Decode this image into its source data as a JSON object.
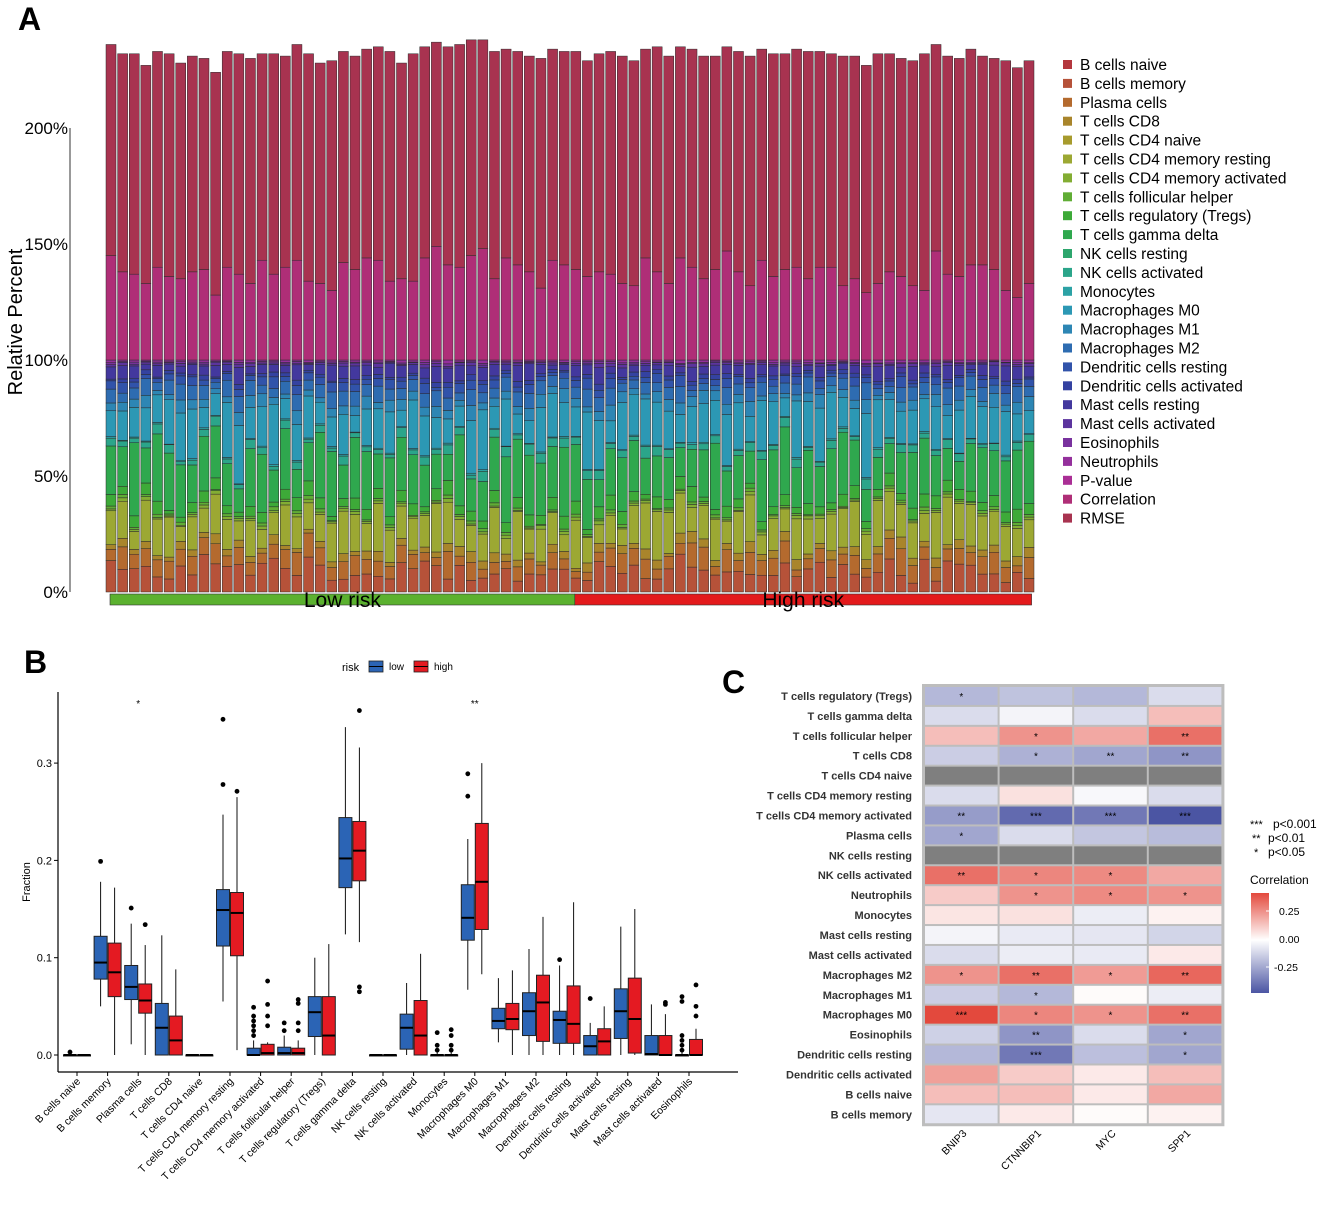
{
  "panels": {
    "a": "A",
    "b": "B",
    "c": "C"
  },
  "chart_data": [
    {
      "type": "bar",
      "stacked": true,
      "panel": "A",
      "ylabel": "Relative Percent",
      "yticks": [
        "0%",
        "50%",
        "100%",
        "150%",
        "200%"
      ],
      "ylim": [
        0,
        240
      ],
      "groups": [
        {
          "label": "Low risk",
          "count": 40,
          "color": "#5BB12F"
        },
        {
          "label": "High risk",
          "count": 40,
          "color": "#E31A1C"
        }
      ],
      "series": [
        "B cells naive",
        "B cells memory",
        "Plasma cells",
        "T cells CD8",
        "T cells CD4 naive",
        "T cells CD4 memory resting",
        "T cells CD4 memory activated",
        "T cells follicular helper",
        "T cells regulatory (Tregs)",
        "T cells gamma delta",
        "NK cells resting",
        "NK cells activated",
        "Monocytes",
        "Macrophages M0",
        "Macrophages M1",
        "Macrophages M2",
        "Dendritic cells resting",
        "Dendritic cells activated",
        "Mast cells resting",
        "Mast cells activated",
        "Eosinophils",
        "Neutrophils",
        "P-value",
        "Correlation",
        "RMSE"
      ],
      "colors": [
        "#B4373E",
        "#B65239",
        "#B46A2E",
        "#A9852B",
        "#A79B2D",
        "#9CA833",
        "#83AD33",
        "#60AD35",
        "#3DAA38",
        "#2FA84E",
        "#2DA66D",
        "#2BA58A",
        "#2CA2A5",
        "#2C98B4",
        "#2D86B4",
        "#2E6CB1",
        "#3153AA",
        "#3442A1",
        "#43389E",
        "#5C349E",
        "#79329E",
        "#94309C",
        "#AA2E95",
        "#AF2E77",
        "#A83350"
      ],
      "mean_composition": [
        0.0,
        0.095,
        0.065,
        0.03,
        0.0,
        0.145,
        0.01,
        0.01,
        0.04,
        0.205,
        0.0,
        0.03,
        0.005,
        0.16,
        0.04,
        0.05,
        0.03,
        0.015,
        0.045,
        0.01,
        0.006,
        0.009,
        0.0,
        0.45,
        0.85
      ],
      "correlation": [
        0.45,
        0.38,
        0.37,
        0.33,
        0.4,
        0.36,
        0.35,
        0.38,
        0.39,
        0.28,
        0.4,
        0.37,
        0.33,
        0.43,
        0.37,
        0.4,
        0.43,
        0.34,
        0.33,
        0.3,
        0.42,
        0.39,
        0.44,
        0.43,
        0.34,
        0.35,
        0.34,
        0.44,
        0.49,
        0.41,
        0.4,
        0.45,
        0.48,
        0.35,
        0.44,
        0.41,
        0.38,
        0.31,
        0.43,
        0.41,
        0.39,
        0.36,
        0.38,
        0.37,
        0.33,
        0.32,
        0.44,
        0.38,
        0.33,
        0.44,
        0.4,
        0.35,
        0.39,
        0.47,
        0.38,
        0.32,
        0.43,
        0.36,
        0.39,
        0.4,
        0.35,
        0.4,
        0.4,
        0.32,
        0.35,
        0.29,
        0.33,
        0.38,
        0.36,
        0.32,
        0.3,
        0.47,
        0.37,
        0.36,
        0.41,
        0.41,
        0.39,
        0.3,
        0.27,
        0.33
      ],
      "rmse": [
        0.91,
        0.94,
        0.95,
        0.94,
        0.93,
        0.96,
        0.93,
        0.93,
        0.91,
        0.96,
        0.93,
        0.95,
        0.97,
        0.89,
        0.95,
        0.91,
        0.93,
        0.98,
        0.95,
        0.99,
        0.91,
        0.92,
        0.9,
        0.92,
        0.99,
        0.93,
        0.98,
        0.91,
        0.88,
        0.94,
        0.96,
        0.93,
        0.9,
        0.98,
        0.9,
        0.92,
        0.93,
        0.99,
        0.91,
        0.92,
        0.94,
        0.93,
        0.94,
        0.96,
        0.98,
        0.97,
        0.9,
        0.97,
        0.98,
        0.91,
        0.94,
        0.96,
        0.92,
        0.88,
        0.95,
        0.99,
        0.91,
        0.96,
        0.93,
        0.94,
        0.98,
        0.93,
        0.92,
        0.99,
        0.96,
        0.98,
        0.99,
        0.94,
        0.94,
        0.97,
        1.02,
        0.89,
        0.94,
        0.94,
        0.93,
        0.9,
        0.91,
        0.99,
        0.99,
        0.96
      ]
    },
    {
      "type": "box",
      "panel": "B",
      "ylabel": "Fraction",
      "yticks": [
        "0.0",
        "0.1",
        "0.2",
        "0.3"
      ],
      "ylim": [
        -0.015,
        0.37
      ],
      "legend": {
        "title": "risk",
        "items": [
          {
            "label": "low",
            "color": "#2B64B5"
          },
          {
            "label": "high",
            "color": "#E41A22"
          }
        ],
        "position": "top"
      },
      "categories": [
        "B cells naive",
        "B cells memory",
        "Plasma cells",
        "T cells CD8",
        "T cells CD4 naive",
        "T cells CD4 memory resting",
        "T cells CD4 memory activated",
        "T cells follicular helper",
        "T cells regulatory (Tregs)",
        "T cells gamma delta",
        "NK cells resting",
        "NK cells activated",
        "Monocytes",
        "Macrophages M0",
        "Macrophages M1",
        "Macrophages M2",
        "Dendritic cells resting",
        "Dendritic cells activated",
        "Mast cells resting",
        "Mast cells activated",
        "Eosinophils"
      ],
      "significance": [
        "",
        "",
        "*",
        "",
        "",
        "",
        "",
        "",
        "",
        "",
        "",
        "",
        "",
        "**",
        "",
        "",
        "",
        "",
        "",
        "",
        ""
      ],
      "low": [
        [
          0,
          0,
          0,
          0,
          0,
          [
            0.003
          ]
        ],
        [
          0.05,
          0.078,
          0.095,
          0.122,
          0.178,
          [
            0.199
          ]
        ],
        [
          0.011,
          0.057,
          0.07,
          0.092,
          0.135,
          [
            0.151
          ]
        ],
        [
          0,
          0,
          0.028,
          0.053,
          0.123,
          []
        ],
        [
          0,
          0,
          0,
          0,
          0,
          []
        ],
        [
          0.055,
          0.112,
          0.149,
          0.17,
          0.247,
          [
            0.278,
            0.345
          ]
        ],
        [
          0,
          0,
          0,
          0.007,
          0.015,
          [
            0.02,
            0.025,
            0.03,
            0.035,
            0.04,
            0.049
          ]
        ],
        [
          0,
          0,
          0.002,
          0.008,
          0.02,
          [
            0.025,
            0.033
          ]
        ],
        [
          0,
          0.019,
          0.044,
          0.06,
          0.1,
          []
        ],
        [
          0.124,
          0.172,
          0.202,
          0.244,
          0.337,
          []
        ],
        [
          0,
          0,
          0,
          0,
          0,
          []
        ],
        [
          0,
          0.006,
          0.028,
          0.042,
          0.074,
          []
        ],
        [
          0,
          0,
          0,
          0,
          0.003,
          [
            0.005,
            0.01,
            0.023
          ]
        ],
        [
          0.067,
          0.118,
          0.141,
          0.175,
          0.222,
          [
            0.266,
            0.289
          ]
        ],
        [
          0.013,
          0.027,
          0.035,
          0.048,
          0.079,
          []
        ],
        [
          0,
          0.02,
          0.045,
          0.064,
          0.109,
          []
        ],
        [
          0,
          0.012,
          0.036,
          0.045,
          0.092,
          [
            0.098
          ]
        ],
        [
          0,
          0,
          0.009,
          0.02,
          0.033,
          [
            0.058
          ]
        ],
        [
          0,
          0.017,
          0.045,
          0.068,
          0.132,
          []
        ],
        [
          0,
          0,
          0.001,
          0.02,
          0.052,
          []
        ],
        [
          0,
          0,
          0,
          0,
          0.003,
          [
            0.005,
            0.01,
            0.015,
            0.02,
            0.055,
            0.06
          ]
        ]
      ],
      "high": [
        [
          0,
          0,
          0,
          0,
          0,
          []
        ],
        [
          0,
          0.06,
          0.085,
          0.115,
          0.172,
          []
        ],
        [
          0,
          0.043,
          0.056,
          0.073,
          0.113,
          [
            0.134
          ]
        ],
        [
          0,
          0,
          0.015,
          0.04,
          0.088,
          []
        ],
        [
          0,
          0,
          0,
          0,
          0,
          []
        ],
        [
          0.005,
          0.102,
          0.146,
          0.167,
          0.265,
          [
            0.271
          ]
        ],
        [
          0,
          0,
          0.002,
          0.011,
          0.013,
          [
            0.03,
            0.04,
            0.052,
            0.076
          ]
        ],
        [
          0,
          0,
          0.002,
          0.007,
          0.015,
          [
            0.025,
            0.033,
            0.053,
            0.057
          ]
        ],
        [
          0,
          0,
          0.02,
          0.06,
          0.114,
          []
        ],
        [
          0.116,
          0.179,
          0.21,
          0.24,
          0.316,
          [
            0.065,
            0.07,
            0.354
          ]
        ],
        [
          0,
          0,
          0,
          0,
          0,
          []
        ],
        [
          0,
          0,
          0.02,
          0.056,
          0.104,
          []
        ],
        [
          0,
          0,
          0,
          0,
          0.003,
          [
            0.005,
            0.01,
            0.02,
            0.026
          ]
        ],
        [
          0.083,
          0.129,
          0.178,
          0.238,
          0.3,
          []
        ],
        [
          0,
          0.026,
          0.037,
          0.053,
          0.087,
          []
        ],
        [
          0,
          0.014,
          0.054,
          0.082,
          0.142,
          []
        ],
        [
          0,
          0.012,
          0.032,
          0.071,
          0.157,
          []
        ],
        [
          0,
          0,
          0.014,
          0.027,
          0.05,
          []
        ],
        [
          0,
          0.002,
          0.037,
          0.079,
          0.15,
          []
        ],
        [
          0,
          0,
          0,
          0.02,
          0.042,
          [
            0.052,
            0.054
          ]
        ],
        [
          0,
          0,
          0,
          0.016,
          0.027,
          [
            0.04,
            0.05,
            0.072
          ]
        ]
      ]
    },
    {
      "type": "heatmap",
      "panel": "C",
      "columns": [
        "BNIP3",
        "CTNNBIP1",
        "MYC",
        "SPP1"
      ],
      "rows": [
        "T cells regulatory (Tregs)",
        "T cells gamma delta",
        "T cells follicular helper",
        "T cells CD8",
        "T cells CD4 naive",
        "T cells CD4 memory resting",
        "T cells CD4 memory activated",
        "Plasma cells",
        "NK cells resting",
        "NK cells activated",
        "Neutrophils",
        "Monocytes",
        "Mast cells resting",
        "Mast cells activated",
        "Macrophages M2",
        "Macrophages M1",
        "Macrophages M0",
        "Eosinophils",
        "Dendritic cells resting",
        "Dendritic cells activated",
        "B cells naive",
        "B cells memory"
      ],
      "values": [
        [
          -0.2,
          -0.17,
          -0.2,
          -0.1
        ],
        [
          -0.1,
          -0.03,
          -0.1,
          0.15
        ],
        [
          0.15,
          0.25,
          0.2,
          0.33
        ],
        [
          -0.14,
          -0.22,
          -0.25,
          -0.3
        ],
        [
          null,
          null,
          null,
          null
        ],
        [
          -0.1,
          0.07,
          -0.02,
          -0.1
        ],
        [
          -0.28,
          -0.42,
          -0.38,
          -0.48
        ],
        [
          -0.25,
          -0.1,
          -0.16,
          -0.19
        ],
        [
          null,
          null,
          null,
          null
        ],
        [
          0.33,
          0.28,
          0.27,
          0.2
        ],
        [
          0.12,
          0.25,
          0.27,
          0.25
        ],
        [
          0.06,
          0.07,
          -0.05,
          0.03
        ],
        [
          -0.03,
          -0.06,
          -0.07,
          -0.12
        ],
        [
          -0.1,
          -0.05,
          -0.06,
          0.05
        ],
        [
          0.25,
          0.33,
          0.23,
          0.35
        ],
        [
          -0.14,
          -0.2,
          0.01,
          -0.05
        ],
        [
          0.42,
          0.28,
          0.25,
          0.33
        ],
        [
          -0.13,
          -0.3,
          -0.1,
          -0.25
        ],
        [
          -0.2,
          -0.38,
          -0.18,
          -0.25
        ],
        [
          0.22,
          0.12,
          0.05,
          0.15
        ],
        [
          0.15,
          0.15,
          0.05,
          0.2
        ],
        [
          -0.07,
          0.05,
          0.01,
          0.03
        ]
      ],
      "stars": [
        [
          "*",
          "",
          "",
          ""
        ],
        [
          "",
          "",
          "",
          ""
        ],
        [
          "",
          "*",
          "",
          "**"
        ],
        [
          "",
          "*",
          "**",
          "**"
        ],
        [
          "",
          "",
          "",
          ""
        ],
        [
          "",
          "",
          "",
          ""
        ],
        [
          "**",
          "***",
          "***",
          "***"
        ],
        [
          "*",
          "",
          "",
          ""
        ],
        [
          "",
          "",
          "",
          ""
        ],
        [
          "**",
          "*",
          "*",
          ""
        ],
        [
          "",
          "*",
          "*",
          "*"
        ],
        [
          "",
          "",
          "",
          ""
        ],
        [
          "",
          "",
          "",
          ""
        ],
        [
          "",
          "",
          "",
          ""
        ],
        [
          "*",
          "**",
          "*",
          "**"
        ],
        [
          "",
          "*",
          "",
          ""
        ],
        [
          "***",
          "*",
          "*",
          "**"
        ],
        [
          "",
          "**",
          "",
          "*"
        ],
        [
          "",
          "***",
          "",
          "*"
        ],
        [
          "",
          "",
          "",
          ""
        ],
        [
          "",
          "",
          "",
          ""
        ],
        [
          "",
          "",
          "",
          ""
        ]
      ],
      "na_color": "#7F7F7F",
      "scale": {
        "low": "#4B55A3",
        "mid": "#FFFFFF",
        "high": "#E3493D",
        "min": -0.48,
        "max": 0.42
      },
      "legend_title": "Correlation",
      "legend_ticks": [
        "0.25",
        "0.00",
        "-0.25"
      ],
      "significance_legend": [
        {
          "stars": "***",
          "label": "p<0.001"
        },
        {
          "stars": "**",
          "label": "p<0.01"
        },
        {
          "stars": "*",
          "label": "p<0.05"
        }
      ]
    }
  ]
}
